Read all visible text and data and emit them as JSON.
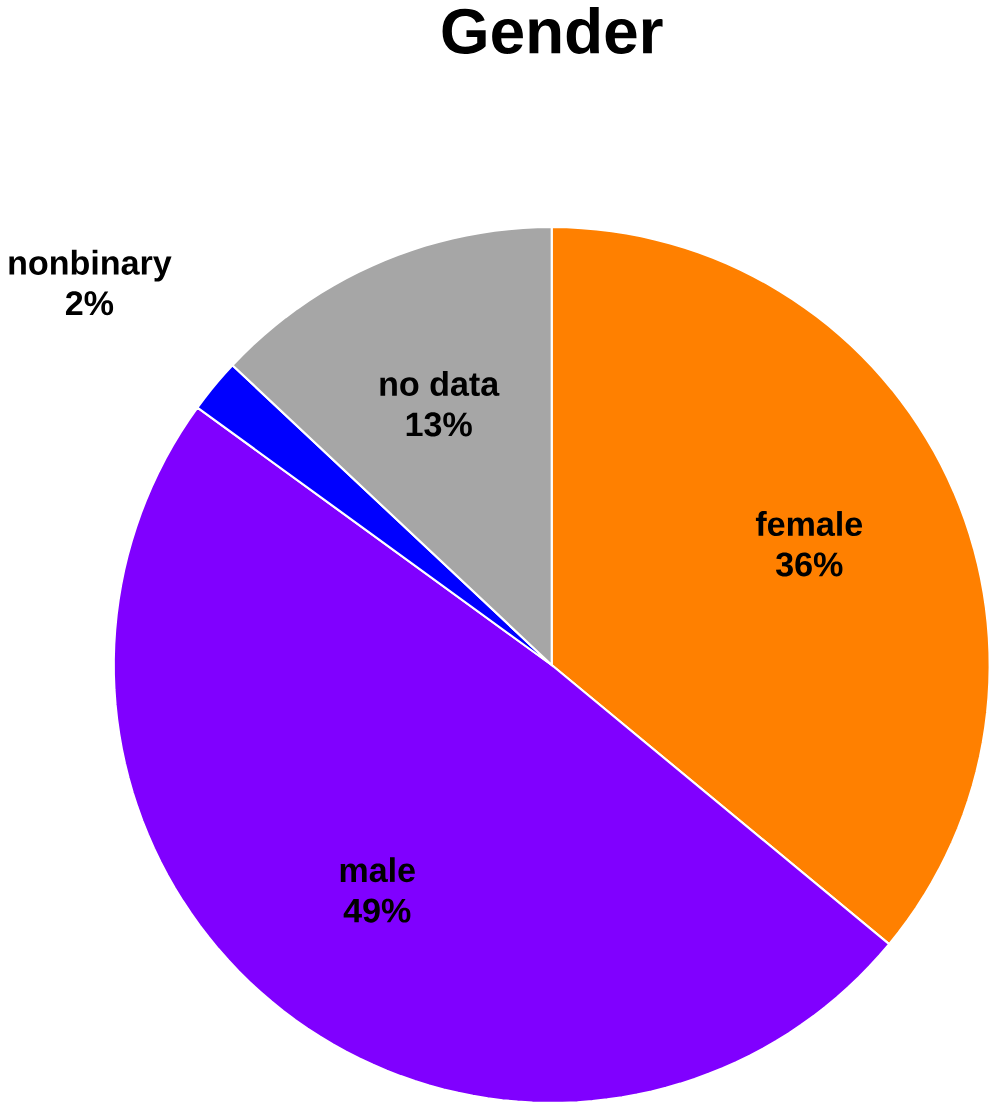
{
  "chart_data": {
    "type": "pie",
    "title": "Gender",
    "categories": [
      "female",
      "male",
      "nonbinary",
      "no data"
    ],
    "values": [
      36,
      49,
      2,
      13
    ],
    "value_labels": [
      "36%",
      "49%",
      "2%",
      "13%"
    ],
    "colors": [
      "#ff8000",
      "#8000ff",
      "#0000ff",
      "#a6a6a6"
    ]
  }
}
